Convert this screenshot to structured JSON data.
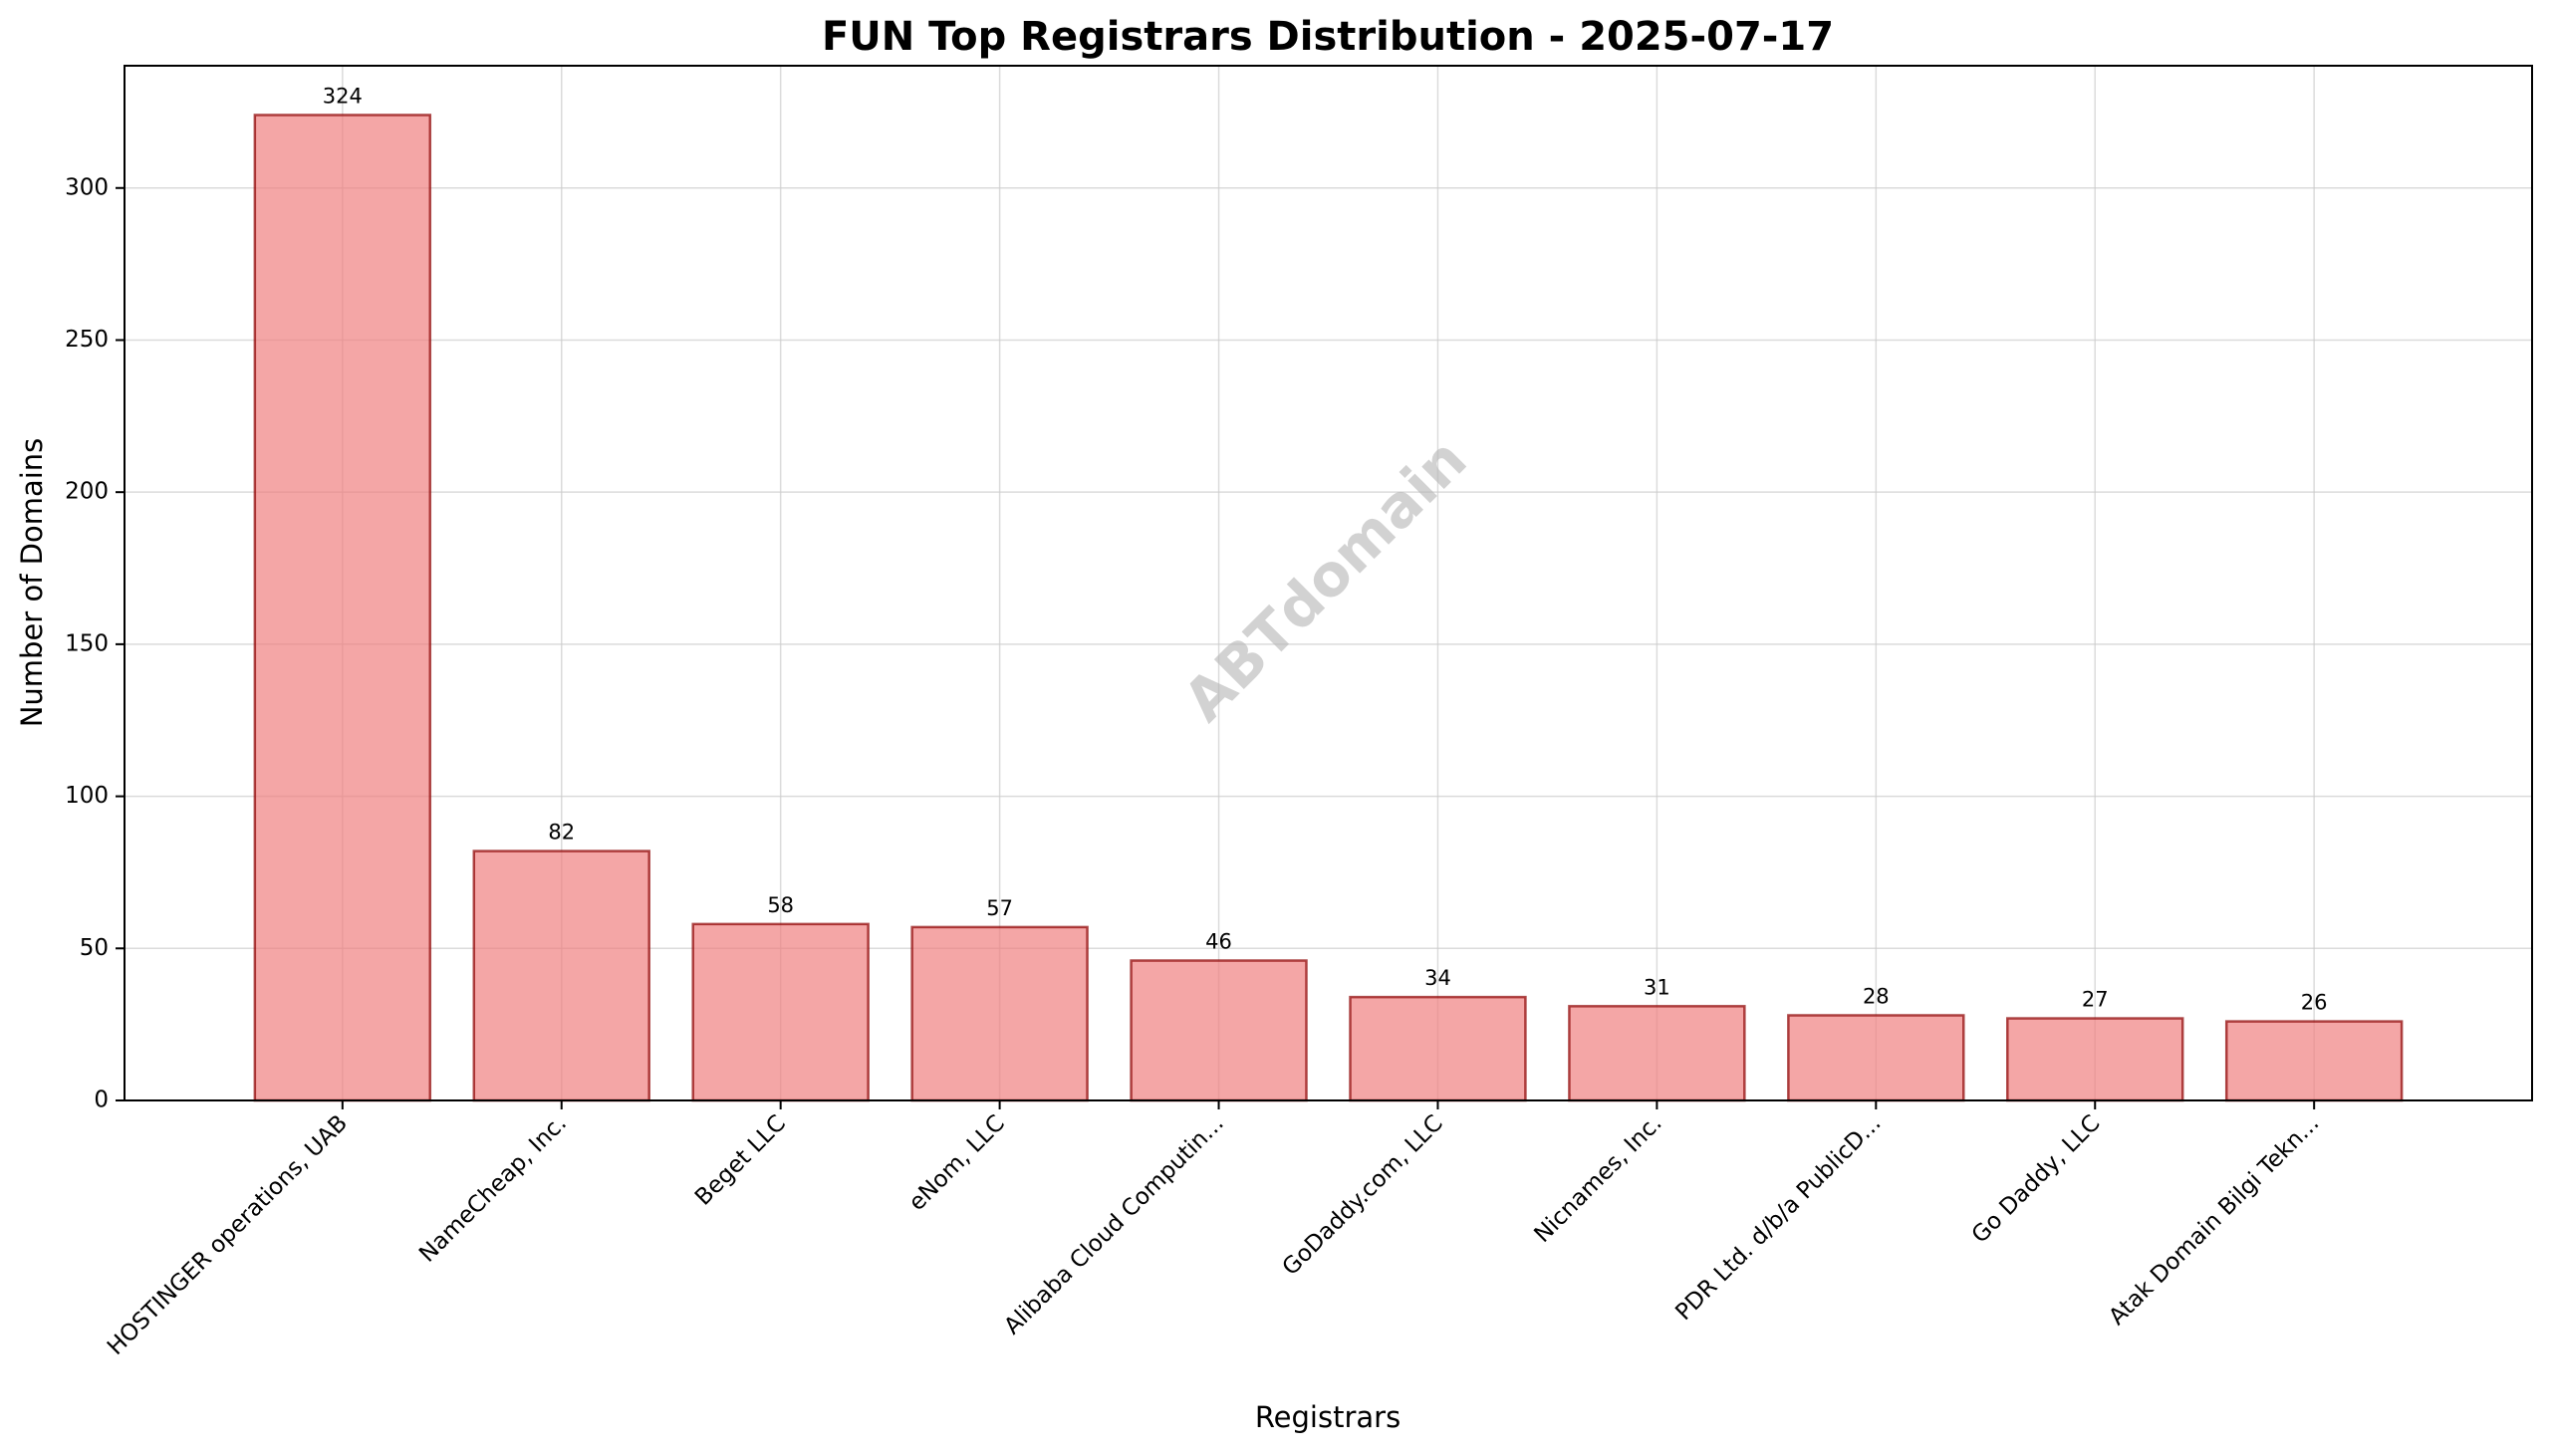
{
  "chart_data": {
    "type": "bar",
    "title": "FUN Top Registrars Distribution - 2025-07-17",
    "xlabel": "Registrars",
    "ylabel": "Number of Domains",
    "categories": [
      "HOSTINGER operations, UAB",
      "NameCheap, Inc.",
      "Beget LLC",
      "eNom, LLC",
      "Alibaba Cloud Computin...",
      "GoDaddy.com, LLC",
      "Nicnames, Inc.",
      "PDR Ltd. d/b/a PublicD...",
      "Go Daddy, LLC",
      "Atak Domain Bilgi Tekn..."
    ],
    "values": [
      324,
      82,
      58,
      57,
      46,
      34,
      31,
      28,
      27,
      26
    ],
    "ylim": [
      0,
      340.2
    ],
    "yticks": [
      0,
      50,
      100,
      150,
      200,
      250,
      300
    ],
    "grid": true,
    "bar_color": "#f08080",
    "bar_edge_color": "#8b0000",
    "watermark": "ABTdomain"
  }
}
